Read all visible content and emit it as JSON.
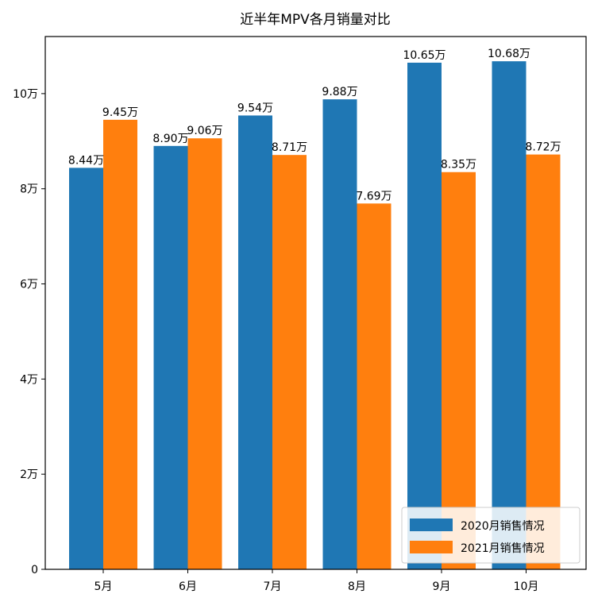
{
  "chart_data": {
    "type": "bar",
    "title": "近半年MPV各月销量对比",
    "xlabel": "",
    "ylabel": "",
    "categories": [
      "5月",
      "6月",
      "7月",
      "8月",
      "9月",
      "10月"
    ],
    "series": [
      {
        "name": "2020月销售情况",
        "color": "#1f77b4",
        "values": [
          8.44,
          8.9,
          9.54,
          9.88,
          10.65,
          10.68
        ],
        "labels": [
          "8.44万",
          "8.90万",
          "9.54万",
          "9.88万",
          "10.65万",
          "10.68万"
        ]
      },
      {
        "name": "2021月销售情况",
        "color": "#ff7f0e",
        "values": [
          9.45,
          9.06,
          8.71,
          7.69,
          8.35,
          8.72
        ],
        "labels": [
          "9.45万",
          "9.06万",
          "8.71万",
          "7.69万",
          "8.35万",
          "8.72万"
        ]
      }
    ],
    "ylim": [
      0,
      11.2
    ],
    "yticks": [
      0,
      2,
      4,
      6,
      8,
      10
    ],
    "ytick_labels": [
      "0",
      "2万",
      "4万",
      "6万",
      "8万",
      "10万"
    ],
    "grid": false,
    "legend_position": "bottom-right"
  }
}
